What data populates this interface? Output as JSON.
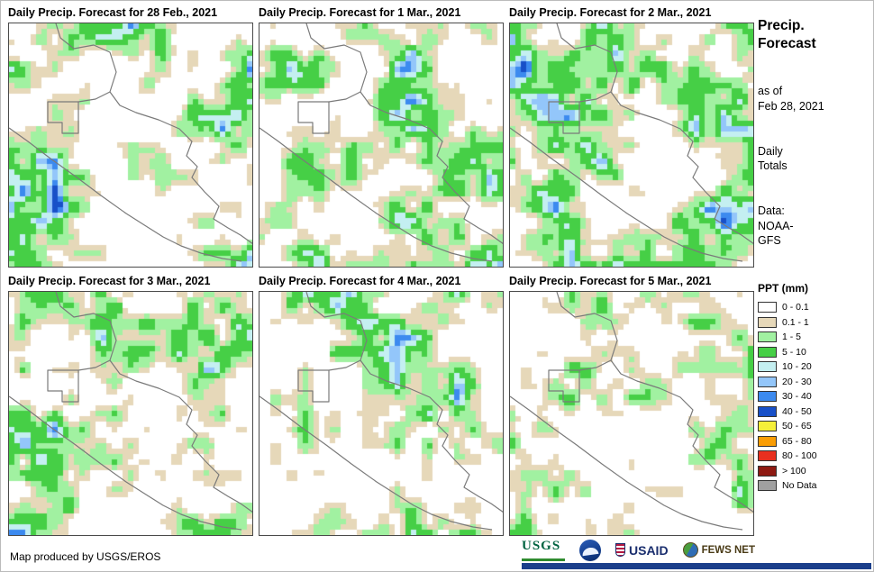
{
  "panels": [
    {
      "title": "Daily Precip. Forecast for 28 Feb., 2021"
    },
    {
      "title": "Daily Precip. Forecast for 1 Mar., 2021"
    },
    {
      "title": "Daily Precip. Forecast for 2 Mar., 2021"
    },
    {
      "title": "Daily Precip. Forecast for 3 Mar., 2021"
    },
    {
      "title": "Daily Precip. Forecast for 4 Mar., 2021"
    },
    {
      "title": "Daily Precip. Forecast for 5 Mar., 2021"
    }
  ],
  "sidebar": {
    "title_lines": [
      "Precip.",
      "Forecast"
    ],
    "as_of_lines": [
      "as of",
      "Feb 28, 2021"
    ],
    "totals_lines": [
      "Daily",
      "Totals"
    ],
    "data_lines": [
      "Data:",
      "NOAA-",
      "GFS"
    ]
  },
  "legend": {
    "title": "PPT (mm)",
    "entries": [
      {
        "label": "0 - 0.1",
        "color": "#FFFFFF"
      },
      {
        "label": "0.1 - 1",
        "color": "#E6D8B9"
      },
      {
        "label": "1 - 5",
        "color": "#A1F1A1"
      },
      {
        "label": "5 - 10",
        "color": "#46CF46"
      },
      {
        "label": "10 - 20",
        "color": "#C4EFF1"
      },
      {
        "label": "20 - 30",
        "color": "#93C6FA"
      },
      {
        "label": "30 - 40",
        "color": "#3C8AEF"
      },
      {
        "label": "40 - 50",
        "color": "#1850C8"
      },
      {
        "label": "50 - 65",
        "color": "#F5EF39"
      },
      {
        "label": "65 - 80",
        "color": "#FA9D05"
      },
      {
        "label": "80 - 100",
        "color": "#E8301F"
      },
      {
        "label": "> 100",
        "color": "#8E1A12"
      },
      {
        "label": "No Data",
        "color": "#A0A0A0"
      }
    ]
  },
  "footer": {
    "credit": "Map produced by USGS/EROS",
    "logos": {
      "usgs": "USGS",
      "usaid": "USAID",
      "fewsnet": "FEWS NET"
    }
  }
}
